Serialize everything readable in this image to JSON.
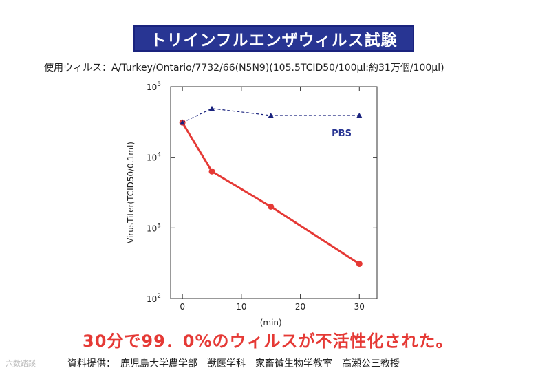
{
  "title": "トリインフルエンザウィルス試験",
  "subtitle": "使用ウィルス：A/Turkey/Ontario/7732/66(N5N9)(105.5TCID50/100μl:約31万個/100μl)",
  "conclusion": "30分で99．0%のウィルスが不活性化された。",
  "credit": "資料提供：　鹿児島大学農学部　獣医学科　家畜微生物学教室　高瀬公三教授",
  "watermark": "六数踏蹊",
  "chart_data": {
    "type": "line",
    "title": "",
    "xlabel": "(min)",
    "ylabel": "VirusTiter(TCID50/0.1ml)",
    "xlim": [
      -2,
      33
    ],
    "ylim": [
      100,
      100000
    ],
    "yscale": "log",
    "x_ticks": [
      0,
      10,
      20,
      30
    ],
    "y_ticks": [
      {
        "value": 100,
        "base": "10",
        "exp": "2"
      },
      {
        "value": 1000,
        "base": "10",
        "exp": "3"
      },
      {
        "value": 10000,
        "base": "10",
        "exp": "4"
      },
      {
        "value": 100000,
        "base": "10",
        "exp": "5"
      }
    ],
    "grid": false,
    "series": [
      {
        "name": "",
        "color": "#e53935",
        "style": "solid",
        "marker": "circle",
        "x": [
          0,
          5,
          15,
          30
        ],
        "y": [
          31000,
          6300,
          2000,
          310
        ]
      },
      {
        "name": "PBS",
        "color": "#1a237e",
        "style": "dashed",
        "marker": "triangle",
        "x": [
          0,
          5,
          15,
          30
        ],
        "y": [
          31000,
          49000,
          39000,
          39000
        ]
      }
    ],
    "annotations": [
      {
        "text": "PBS",
        "x": 27,
        "y": 20000,
        "color": "#283593"
      }
    ]
  }
}
